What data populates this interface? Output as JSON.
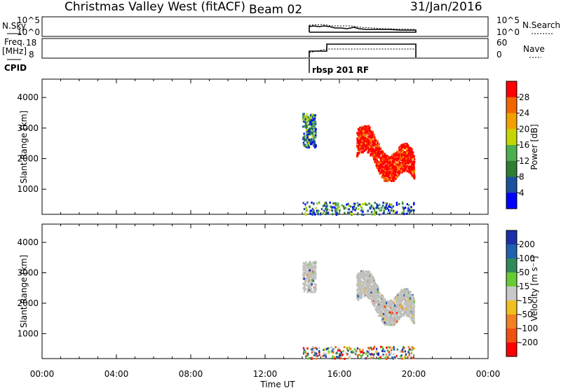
{
  "header": {
    "title": "Christmas Valley West (fitACF)",
    "beam": "Beam 02",
    "date": "31/Jan/2016"
  },
  "top_panels": {
    "nsky_label": "N.Sky",
    "nsearch_label": "N.Search",
    "nsky_ticks": [
      "10^5",
      "10^0"
    ],
    "nsky_right_ticks": [
      "10^5",
      "10^0"
    ],
    "freq_label_1": "Freq.",
    "freq_label_2": "[MHz]",
    "freq_ticks": [
      "18",
      "8"
    ],
    "nave_label": "Nave",
    "nave_ticks": [
      "60",
      "0"
    ],
    "cpid_label": "CPID",
    "cpid_text": "rbsp 201 RF"
  },
  "colors": {
    "power_scale": [
      "#0000ff",
      "#1e50a0",
      "#2e7d32",
      "#4caf50",
      "#c6d600",
      "#f2a000",
      "#f26600",
      "#ff0000"
    ],
    "velocity_scale": [
      "#1a2fa8",
      "#2060b0",
      "#2e8b57",
      "#66cc33",
      "#c8c8c8",
      "#f0c020",
      "#f08020",
      "#f05010",
      "#ff0000"
    ],
    "ground_scatter": "#c0c0bc"
  },
  "chart_data": [
    {
      "type": "heatmap",
      "name": "power",
      "ylabel": "Slant Range [km]",
      "yticks": [
        "1000",
        "2000",
        "3000",
        "4000"
      ],
      "ylim": [
        180,
        4600
      ],
      "xlim": [
        0,
        24
      ],
      "colorbar": {
        "label": "Power [dB]",
        "ticks": [
          "4",
          "8",
          "12",
          "16",
          "20",
          "24",
          "28"
        ],
        "range": [
          0,
          32
        ]
      },
      "regions": [
        {
          "t": [
            14.0,
            14.7
          ],
          "r": [
            2400,
            3500
          ],
          "level": "mixed-low"
        },
        {
          "t": [
            16.9,
            20.0
          ],
          "r": [
            1300,
            3100
          ],
          "level": "high"
        },
        {
          "t": [
            14.0,
            20.0
          ],
          "r": [
            200,
            600
          ],
          "level": "mixed-low"
        }
      ]
    },
    {
      "type": "heatmap",
      "name": "velocity",
      "ylabel": "Slant Range [km]",
      "yticks": [
        "1000",
        "2000",
        "3000",
        "4000"
      ],
      "ylim": [
        180,
        4600
      ],
      "xlim": [
        0,
        24
      ],
      "colorbar": {
        "label": "Velocity [m s⁻¹]",
        "ticks": [
          "200",
          "100",
          "50",
          "15",
          "-15",
          "-50",
          "-100",
          "-200"
        ],
        "range": [
          -250,
          250
        ]
      },
      "regions": [
        {
          "t": [
            14.0,
            14.7
          ],
          "r": [
            2400,
            3400
          ],
          "level": "ground-scatter"
        },
        {
          "t": [
            16.9,
            20.0
          ],
          "r": [
            1300,
            3100
          ],
          "level": "ground-scatter"
        },
        {
          "t": [
            14.0,
            20.0
          ],
          "r": [
            200,
            600
          ],
          "level": "mixed"
        }
      ]
    }
  ],
  "xaxis": {
    "label": "Time UT",
    "ticks": [
      "00:00",
      "04:00",
      "08:00",
      "12:00",
      "16:00",
      "20:00",
      "00:00"
    ]
  }
}
